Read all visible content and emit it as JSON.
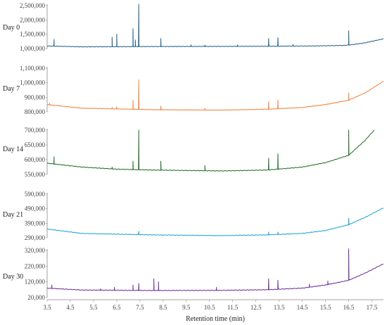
{
  "chart_data": {
    "type": "line",
    "xlabel": "Retention time (min)",
    "xlim": [
      3.5,
      18.0
    ],
    "x_ticks": [
      "3.5",
      "4.5",
      "5.5",
      "6.5",
      "7.5",
      "8.5",
      "9.5",
      "10.5",
      "11.5",
      "12.5",
      "13.5",
      "14.5",
      "15.5",
      "16.5",
      "17.5"
    ],
    "grid": false,
    "panels": [
      {
        "label": "Day 0",
        "color": "#1f5f8b",
        "ylim": [
          1000000,
          2500000
        ],
        "y_ticks": [
          "1,000,000",
          "1,500,000",
          "2,000,000",
          "2,500,000"
        ],
        "baseline": [
          [
            3.5,
            1090000
          ],
          [
            5,
            1060000
          ],
          [
            8,
            1070000
          ],
          [
            11,
            1075000
          ],
          [
            13,
            1080000
          ],
          [
            15,
            1090000
          ],
          [
            16.3,
            1110000
          ],
          [
            16.6,
            1130000
          ],
          [
            17.2,
            1200000
          ],
          [
            18,
            1340000
          ]
        ],
        "peaks": [
          [
            3.8,
            1320000
          ],
          [
            6.3,
            1400000
          ],
          [
            6.5,
            1500000
          ],
          [
            7.2,
            1700000
          ],
          [
            7.3,
            1300000
          ],
          [
            7.45,
            2550000
          ],
          [
            8.4,
            1350000
          ],
          [
            9.7,
            1130000
          ],
          [
            10.3,
            1120000
          ],
          [
            11.7,
            1130000
          ],
          [
            13.05,
            1350000
          ],
          [
            13.45,
            1380000
          ],
          [
            14.1,
            1140000
          ],
          [
            16.5,
            1620000
          ]
        ]
      },
      {
        "label": "Day 7",
        "color": "#f07f39",
        "ylim": [
          800000,
          1100000
        ],
        "y_ticks": [
          "800,000",
          "900,000",
          "1,000,000",
          "1,100,000"
        ],
        "baseline": [
          [
            3.5,
            850000
          ],
          [
            5,
            825000
          ],
          [
            8,
            815000
          ],
          [
            11,
            812000
          ],
          [
            13,
            818000
          ],
          [
            14.5,
            830000
          ],
          [
            15.5,
            850000
          ],
          [
            16.5,
            880000
          ],
          [
            17.2,
            930000
          ],
          [
            18,
            1010000
          ]
        ],
        "peaks": [
          [
            3.6,
            860000
          ],
          [
            6.3,
            830000
          ],
          [
            6.5,
            835000
          ],
          [
            7.2,
            880000
          ],
          [
            7.45,
            1020000
          ],
          [
            8.4,
            840000
          ],
          [
            10.3,
            825000
          ],
          [
            13.05,
            870000
          ],
          [
            13.45,
            880000
          ],
          [
            16.5,
            930000
          ]
        ]
      },
      {
        "label": "Day 14",
        "color": "#1e6b23",
        "ylim": [
          550000,
          700000
        ],
        "y_ticks": [
          "550,000",
          "600,000",
          "650,000",
          "700,000"
        ],
        "baseline": [
          [
            3.5,
            588000
          ],
          [
            5,
            575000
          ],
          [
            6.5,
            568000
          ],
          [
            8,
            565000
          ],
          [
            11,
            562000
          ],
          [
            13,
            565000
          ],
          [
            14.5,
            575000
          ],
          [
            15.5,
            590000
          ],
          [
            16.5,
            615000
          ],
          [
            17.2,
            665000
          ],
          [
            17.6,
            700000
          ]
        ],
        "peaks": [
          [
            3.8,
            610000
          ],
          [
            6.3,
            575000
          ],
          [
            7.2,
            595000
          ],
          [
            7.45,
            700000
          ],
          [
            8.4,
            595000
          ],
          [
            10.3,
            580000
          ],
          [
            13.05,
            605000
          ],
          [
            13.45,
            620000
          ],
          [
            16.5,
            700000
          ]
        ]
      },
      {
        "label": "Day 21",
        "color": "#1ca0d3",
        "ylim": [
          290000,
          590000
        ],
        "y_ticks": [
          "290,000",
          "390,000",
          "490,000",
          "590,000"
        ],
        "baseline": [
          [
            3.5,
            350000
          ],
          [
            5,
            320000
          ],
          [
            8,
            310000
          ],
          [
            11,
            305000
          ],
          [
            13,
            310000
          ],
          [
            14.5,
            320000
          ],
          [
            15.5,
            340000
          ],
          [
            16.5,
            380000
          ],
          [
            17.2,
            430000
          ],
          [
            18,
            495000
          ]
        ],
        "peaks": [
          [
            7.45,
            335000
          ],
          [
            13.05,
            330000
          ],
          [
            13.45,
            330000
          ],
          [
            16.5,
            425000
          ]
        ]
      },
      {
        "label": "Day 30",
        "color": "#6a2b9b",
        "ylim": [
          20000,
          320000
        ],
        "y_ticks": [
          "20,000",
          "120,000",
          "220,000",
          "320,000"
        ],
        "baseline": [
          [
            3.5,
            80000
          ],
          [
            5,
            68000
          ],
          [
            8,
            65000
          ],
          [
            11,
            66000
          ],
          [
            13,
            70000
          ],
          [
            14.5,
            80000
          ],
          [
            15.5,
            100000
          ],
          [
            16.5,
            130000
          ],
          [
            17.2,
            175000
          ],
          [
            18,
            235000
          ]
        ],
        "peaks": [
          [
            3.7,
            100000
          ],
          [
            5.8,
            75000
          ],
          [
            6.4,
            85000
          ],
          [
            7.2,
            100000
          ],
          [
            7.45,
            110000
          ],
          [
            8.1,
            140000
          ],
          [
            8.3,
            120000
          ],
          [
            10.8,
            85000
          ],
          [
            13.05,
            140000
          ],
          [
            13.45,
            130000
          ],
          [
            14.8,
            105000
          ],
          [
            15.6,
            125000
          ],
          [
            16.5,
            330000
          ]
        ]
      }
    ]
  }
}
